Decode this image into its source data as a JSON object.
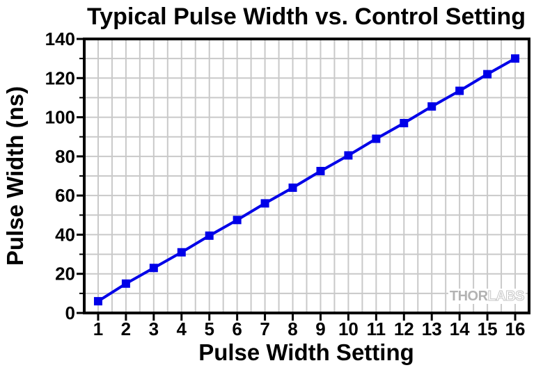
{
  "chart_data": {
    "type": "line",
    "title": "Typical Pulse Width vs. Control Setting",
    "xlabel": "Pulse Width Setting",
    "ylabel": "Pulse Width (ns)",
    "x": [
      1,
      2,
      3,
      4,
      5,
      6,
      7,
      8,
      9,
      10,
      11,
      12,
      13,
      14,
      15,
      16
    ],
    "y": [
      6,
      15,
      23,
      31,
      39.5,
      47.5,
      56,
      64,
      72.5,
      80.5,
      89,
      97,
      105.5,
      113.5,
      122,
      130
    ],
    "xlim": [
      0.5,
      16.5
    ],
    "ylim": [
      0,
      140
    ],
    "x_major_ticks": [
      1,
      2,
      3,
      4,
      5,
      6,
      7,
      8,
      9,
      10,
      11,
      12,
      13,
      14,
      15,
      16
    ],
    "y_major_ticks": [
      0,
      20,
      40,
      60,
      80,
      100,
      120,
      140
    ],
    "y_minor_ticks": [
      10,
      30,
      50,
      70,
      90,
      110,
      130
    ],
    "x_grid_step": 0.5,
    "y_grid_step": 10,
    "grid": true,
    "legend": "none",
    "marker": "square",
    "colors": {
      "line": "#0000e8",
      "grid": "#c9c9c9",
      "axis": "#000000",
      "text": "#000000"
    }
  },
  "watermark": {
    "thor": "THOR",
    "labs": "LABS"
  }
}
